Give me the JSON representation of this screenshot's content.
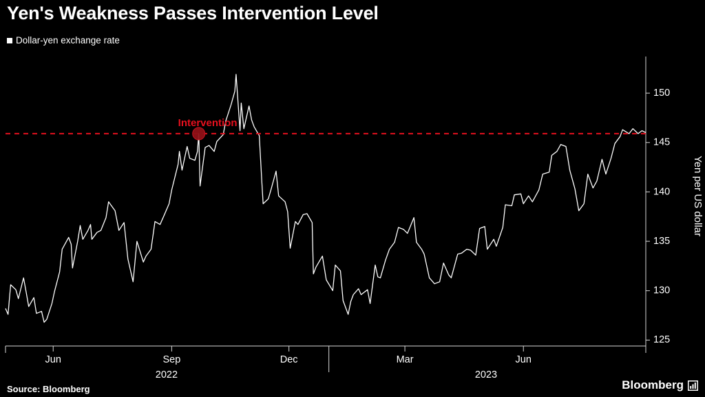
{
  "title": "Yen's Weakness Passes Intervention Level",
  "legend": {
    "label": "Dollar-yen exchange rate",
    "swatch_color": "#ffffff"
  },
  "y_axis_title": "Yen per US dollar",
  "source": "Source: Bloomberg",
  "brand": "Bloomberg",
  "colors": {
    "background": "#000000",
    "text": "#ffffff",
    "price_line": "#ffffff",
    "red": "#e8101e",
    "dot_fill": "#8f1117",
    "dot_stroke": "#c41320",
    "axis": "#d9d9d9"
  },
  "intervention": {
    "label": "Intervention",
    "value": 145.9,
    "date": "2022-09-22"
  },
  "chart_data": {
    "type": "line",
    "series_name": "Dollar-yen exchange rate",
    "title": "Yen's Weakness Passes Intervention Level",
    "ylabel": "Yen per US dollar",
    "ylim": [
      124.4,
      152.8
    ],
    "y_ticks": [
      125,
      130,
      135,
      140,
      145,
      150
    ],
    "x_ticks": [
      {
        "label": "Jun",
        "date": "2022-06-01"
      },
      {
        "label": "Sep",
        "date": "2022-09-01"
      },
      {
        "label": "Dec",
        "date": "2022-12-01"
      },
      {
        "label": "Mar",
        "date": "2023-03-01"
      },
      {
        "label": "Jun",
        "date": "2023-06-01"
      }
    ],
    "year_labels": [
      {
        "label": "2022",
        "date": "2022-08-28"
      },
      {
        "label": "2023",
        "date": "2023-05-03"
      }
    ],
    "year_separators": [
      "2023-01-01"
    ],
    "annotation": {
      "label": "Intervention",
      "value": 145.9,
      "date": "2022-09-22"
    },
    "points": [
      [
        "2022-04-25",
        128.2
      ],
      [
        "2022-04-27",
        127.6
      ],
      [
        "2022-04-29",
        130.6
      ],
      [
        "2022-05-03",
        130.1
      ],
      [
        "2022-05-05",
        129.2
      ],
      [
        "2022-05-09",
        131.3
      ],
      [
        "2022-05-11",
        129.9
      ],
      [
        "2022-05-13",
        128.4
      ],
      [
        "2022-05-17",
        129.3
      ],
      [
        "2022-05-19",
        127.7
      ],
      [
        "2022-05-23",
        127.9
      ],
      [
        "2022-05-25",
        126.8
      ],
      [
        "2022-05-27",
        127.1
      ],
      [
        "2022-05-31",
        128.7
      ],
      [
        "2022-06-02",
        129.9
      ],
      [
        "2022-06-06",
        131.9
      ],
      [
        "2022-06-08",
        134.2
      ],
      [
        "2022-06-13",
        135.4
      ],
      [
        "2022-06-15",
        134.7
      ],
      [
        "2022-06-16",
        132.3
      ],
      [
        "2022-06-20",
        135.0
      ],
      [
        "2022-06-22",
        136.6
      ],
      [
        "2022-06-24",
        135.2
      ],
      [
        "2022-06-28",
        136.1
      ],
      [
        "2022-06-30",
        136.7
      ],
      [
        "2022-07-01",
        135.2
      ],
      [
        "2022-07-05",
        135.9
      ],
      [
        "2022-07-08",
        136.1
      ],
      [
        "2022-07-12",
        137.4
      ],
      [
        "2022-07-14",
        139.0
      ],
      [
        "2022-07-19",
        138.1
      ],
      [
        "2022-07-22",
        136.1
      ],
      [
        "2022-07-26",
        136.9
      ],
      [
        "2022-07-29",
        133.2
      ],
      [
        "2022-08-02",
        130.9
      ],
      [
        "2022-08-05",
        135.0
      ],
      [
        "2022-08-10",
        132.9
      ],
      [
        "2022-08-12",
        133.5
      ],
      [
        "2022-08-16",
        134.2
      ],
      [
        "2022-08-19",
        137.0
      ],
      [
        "2022-08-23",
        136.7
      ],
      [
        "2022-08-26",
        137.6
      ],
      [
        "2022-08-30",
        138.8
      ],
      [
        "2022-09-01",
        140.2
      ],
      [
        "2022-09-06",
        142.8
      ],
      [
        "2022-09-07",
        144.1
      ],
      [
        "2022-09-09",
        142.2
      ],
      [
        "2022-09-13",
        144.6
      ],
      [
        "2022-09-15",
        143.4
      ],
      [
        "2022-09-19",
        143.2
      ],
      [
        "2022-09-21",
        144.1
      ],
      [
        "2022-09-22",
        145.9
      ],
      [
        "2022-09-23",
        140.6
      ],
      [
        "2022-09-27",
        144.5
      ],
      [
        "2022-09-30",
        144.7
      ],
      [
        "2022-10-04",
        144.1
      ],
      [
        "2022-10-06",
        145.1
      ],
      [
        "2022-10-11",
        145.8
      ],
      [
        "2022-10-13",
        147.2
      ],
      [
        "2022-10-17",
        148.8
      ],
      [
        "2022-10-20",
        150.2
      ],
      [
        "2022-10-21",
        151.9
      ],
      [
        "2022-10-24",
        146.2
      ],
      [
        "2022-10-25",
        149.0
      ],
      [
        "2022-10-27",
        146.4
      ],
      [
        "2022-10-31",
        148.7
      ],
      [
        "2022-11-02",
        147.3
      ],
      [
        "2022-11-04",
        146.6
      ],
      [
        "2022-11-08",
        145.7
      ],
      [
        "2022-11-10",
        140.9
      ],
      [
        "2022-11-11",
        138.8
      ],
      [
        "2022-11-15",
        139.3
      ],
      [
        "2022-11-17",
        140.2
      ],
      [
        "2022-11-21",
        142.1
      ],
      [
        "2022-11-23",
        139.6
      ],
      [
        "2022-11-28",
        139.0
      ],
      [
        "2022-11-30",
        138.0
      ],
      [
        "2022-12-02",
        134.3
      ],
      [
        "2022-12-06",
        137.0
      ],
      [
        "2022-12-08",
        136.7
      ],
      [
        "2022-12-12",
        137.7
      ],
      [
        "2022-12-15",
        137.8
      ],
      [
        "2022-12-19",
        136.9
      ],
      [
        "2022-12-20",
        131.7
      ],
      [
        "2022-12-22",
        132.4
      ],
      [
        "2022-12-27",
        133.5
      ],
      [
        "2022-12-30",
        131.1
      ],
      [
        "2023-01-04",
        130.0
      ],
      [
        "2023-01-06",
        132.6
      ],
      [
        "2023-01-10",
        132.0
      ],
      [
        "2023-01-12",
        129.0
      ],
      [
        "2023-01-16",
        127.6
      ],
      [
        "2023-01-18",
        128.9
      ],
      [
        "2023-01-20",
        129.6
      ],
      [
        "2023-01-24",
        130.2
      ],
      [
        "2023-01-26",
        129.6
      ],
      [
        "2023-01-31",
        130.1
      ],
      [
        "2023-02-02",
        128.7
      ],
      [
        "2023-02-06",
        132.6
      ],
      [
        "2023-02-08",
        131.4
      ],
      [
        "2023-02-10",
        131.3
      ],
      [
        "2023-02-14",
        133.1
      ],
      [
        "2023-02-17",
        134.2
      ],
      [
        "2023-02-21",
        134.9
      ],
      [
        "2023-02-24",
        136.4
      ],
      [
        "2023-02-28",
        136.2
      ],
      [
        "2023-03-03",
        135.8
      ],
      [
        "2023-03-08",
        137.4
      ],
      [
        "2023-03-10",
        134.9
      ],
      [
        "2023-03-14",
        134.2
      ],
      [
        "2023-03-16",
        133.7
      ],
      [
        "2023-03-20",
        131.3
      ],
      [
        "2023-03-24",
        130.7
      ],
      [
        "2023-03-28",
        130.9
      ],
      [
        "2023-03-31",
        132.8
      ],
      [
        "2023-04-04",
        131.6
      ],
      [
        "2023-04-06",
        131.3
      ],
      [
        "2023-04-11",
        133.7
      ],
      [
        "2023-04-14",
        133.8
      ],
      [
        "2023-04-18",
        134.2
      ],
      [
        "2023-04-21",
        134.1
      ],
      [
        "2023-04-25",
        133.6
      ],
      [
        "2023-04-28",
        136.3
      ],
      [
        "2023-05-02",
        136.5
      ],
      [
        "2023-05-04",
        134.2
      ],
      [
        "2023-05-09",
        135.2
      ],
      [
        "2023-05-11",
        134.5
      ],
      [
        "2023-05-16",
        136.4
      ],
      [
        "2023-05-18",
        138.7
      ],
      [
        "2023-05-23",
        138.6
      ],
      [
        "2023-05-25",
        139.7
      ],
      [
        "2023-05-30",
        139.8
      ],
      [
        "2023-06-01",
        138.8
      ],
      [
        "2023-06-05",
        139.6
      ],
      [
        "2023-06-08",
        139.0
      ],
      [
        "2023-06-13",
        140.2
      ],
      [
        "2023-06-16",
        141.8
      ],
      [
        "2023-06-21",
        142.0
      ],
      [
        "2023-06-23",
        143.7
      ],
      [
        "2023-06-27",
        144.1
      ],
      [
        "2023-06-30",
        144.8
      ],
      [
        "2023-07-04",
        144.6
      ],
      [
        "2023-07-07",
        142.2
      ],
      [
        "2023-07-11",
        140.3
      ],
      [
        "2023-07-14",
        138.1
      ],
      [
        "2023-07-18",
        138.8
      ],
      [
        "2023-07-21",
        141.8
      ],
      [
        "2023-07-25",
        140.4
      ],
      [
        "2023-07-28",
        141.1
      ],
      [
        "2023-08-01",
        143.3
      ],
      [
        "2023-08-04",
        141.8
      ],
      [
        "2023-08-08",
        143.4
      ],
      [
        "2023-08-11",
        144.9
      ],
      [
        "2023-08-15",
        145.6
      ],
      [
        "2023-08-17",
        146.3
      ],
      [
        "2023-08-22",
        145.9
      ],
      [
        "2023-08-25",
        146.4
      ],
      [
        "2023-08-29",
        145.9
      ],
      [
        "2023-09-01",
        146.2
      ],
      [
        "2023-09-04",
        146.0
      ]
    ]
  }
}
